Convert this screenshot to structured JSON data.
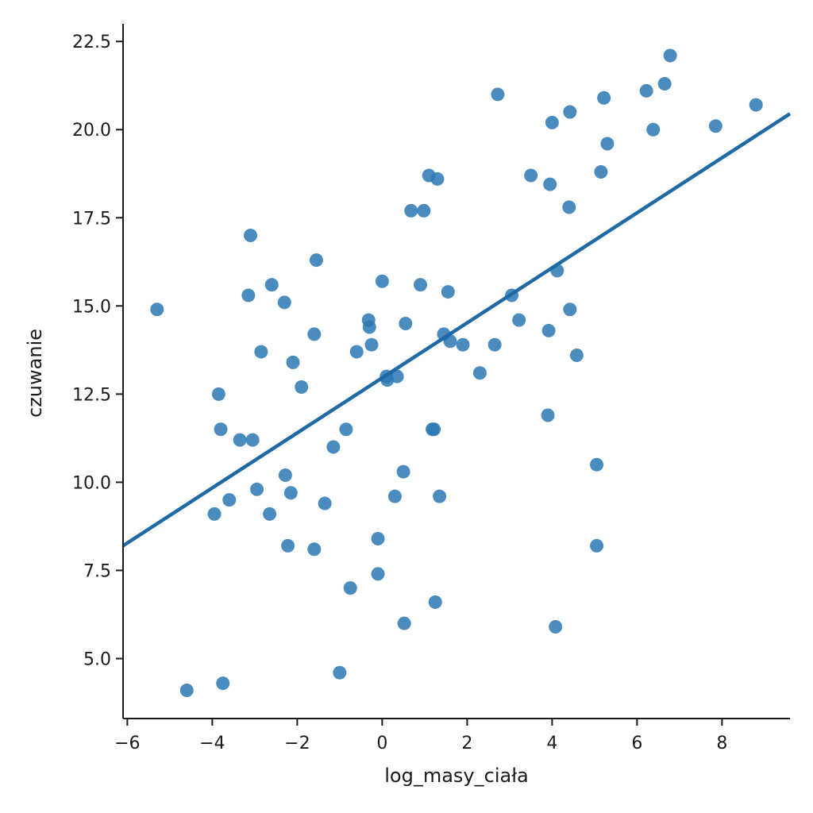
{
  "chart_data": {
    "type": "scatter",
    "xlabel": "log_masy_ciała",
    "ylabel": "czuwanie",
    "xlim": [
      -6.1,
      9.6
    ],
    "ylim": [
      3.3,
      23.0
    ],
    "xticks": [
      -6,
      -4,
      -2,
      0,
      2,
      4,
      6,
      8
    ],
    "xtick_labels": [
      "−6",
      "−4",
      "−2",
      "0",
      "2",
      "4",
      "6",
      "8"
    ],
    "yticks": [
      5.0,
      7.5,
      10.0,
      12.5,
      15.0,
      17.5,
      20.0,
      22.5
    ],
    "ytick_labels": [
      "5.0",
      "7.5",
      "10.0",
      "12.5",
      "15.0",
      "17.5",
      "20.0",
      "22.5"
    ],
    "grid": false,
    "color": "#2b78b4",
    "points": [
      [
        -5.3,
        14.9
      ],
      [
        -4.6,
        4.1
      ],
      [
        -3.95,
        9.1
      ],
      [
        -3.85,
        12.5
      ],
      [
        -3.8,
        11.5
      ],
      [
        -3.75,
        4.3
      ],
      [
        -3.6,
        9.5
      ],
      [
        -3.35,
        11.2
      ],
      [
        -3.15,
        15.3
      ],
      [
        -3.1,
        17.0
      ],
      [
        -3.05,
        11.2
      ],
      [
        -2.95,
        9.8
      ],
      [
        -2.85,
        13.7
      ],
      [
        -2.65,
        9.1
      ],
      [
        -2.6,
        15.6
      ],
      [
        -2.3,
        15.1
      ],
      [
        -2.28,
        10.2
      ],
      [
        -2.22,
        8.2
      ],
      [
        -2.15,
        9.7
      ],
      [
        -2.1,
        13.4
      ],
      [
        -1.9,
        12.7
      ],
      [
        -1.6,
        14.2
      ],
      [
        -1.6,
        8.1
      ],
      [
        -1.55,
        16.3
      ],
      [
        -1.35,
        9.4
      ],
      [
        -1.15,
        11.0
      ],
      [
        -1.0,
        4.6
      ],
      [
        -0.85,
        11.5
      ],
      [
        -0.75,
        7.0
      ],
      [
        -0.6,
        13.7
      ],
      [
        -0.32,
        14.6
      ],
      [
        -0.3,
        14.4
      ],
      [
        -0.25,
        13.9
      ],
      [
        -0.1,
        8.4
      ],
      [
        -0.1,
        7.4
      ],
      [
        0.0,
        15.7
      ],
      [
        0.1,
        13.0
      ],
      [
        0.12,
        12.9
      ],
      [
        0.3,
        9.6
      ],
      [
        0.35,
        13.0
      ],
      [
        0.5,
        10.3
      ],
      [
        0.52,
        6.0
      ],
      [
        0.55,
        14.5
      ],
      [
        0.68,
        17.7
      ],
      [
        0.9,
        15.6
      ],
      [
        0.98,
        17.7
      ],
      [
        1.1,
        18.7
      ],
      [
        1.18,
        11.5
      ],
      [
        1.22,
        11.5
      ],
      [
        1.25,
        6.6
      ],
      [
        1.3,
        18.6
      ],
      [
        1.35,
        9.6
      ],
      [
        1.45,
        14.2
      ],
      [
        1.55,
        15.4
      ],
      [
        1.6,
        14.0
      ],
      [
        1.9,
        13.9
      ],
      [
        2.3,
        13.1
      ],
      [
        2.65,
        13.9
      ],
      [
        2.72,
        21.0
      ],
      [
        3.05,
        15.3
      ],
      [
        3.22,
        14.6
      ],
      [
        3.5,
        18.7
      ],
      [
        3.9,
        11.9
      ],
      [
        3.92,
        14.3
      ],
      [
        3.95,
        18.45
      ],
      [
        4.0,
        20.2
      ],
      [
        4.08,
        5.9
      ],
      [
        4.12,
        16.0
      ],
      [
        4.4,
        17.8
      ],
      [
        4.42,
        14.9
      ],
      [
        4.42,
        20.5
      ],
      [
        4.58,
        13.6
      ],
      [
        5.05,
        10.5
      ],
      [
        5.05,
        8.2
      ],
      [
        5.15,
        18.8
      ],
      [
        5.22,
        20.9
      ],
      [
        5.3,
        19.6
      ],
      [
        6.22,
        21.1
      ],
      [
        6.38,
        20.0
      ],
      [
        6.65,
        21.3
      ],
      [
        6.78,
        22.1
      ],
      [
        7.85,
        20.1
      ],
      [
        8.8,
        20.7
      ]
    ],
    "regression_line": {
      "x": [
        -6.1,
        9.6
      ],
      "y": [
        8.2,
        20.45
      ]
    }
  }
}
